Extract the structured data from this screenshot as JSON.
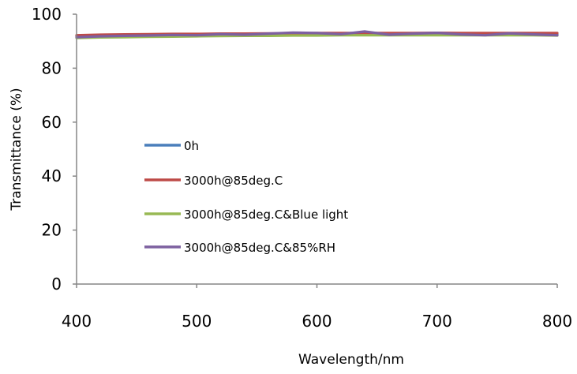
{
  "chart_data": {
    "type": "line",
    "xlabel": "Wavelength/nm",
    "ylabel": "Transmittance (%)",
    "xlim": [
      400,
      800
    ],
    "ylim": [
      0,
      100
    ],
    "xticks": [
      "400",
      "500",
      "600",
      "700",
      "800"
    ],
    "yticks": [
      "0",
      "20",
      "40",
      "60",
      "80",
      "100"
    ],
    "grid": false,
    "legend_position": "center-left",
    "x": [
      400,
      420,
      440,
      460,
      480,
      500,
      520,
      540,
      560,
      580,
      600,
      620,
      640,
      660,
      680,
      700,
      720,
      740,
      760,
      780,
      800
    ],
    "series": [
      {
        "name": "0h",
        "color": "#4a7ebb",
        "values": [
          91.8,
          92.0,
          92.1,
          92.2,
          92.3,
          92.4,
          92.4,
          92.5,
          92.5,
          92.6,
          92.6,
          92.6,
          92.7,
          92.7,
          92.7,
          92.7,
          92.7,
          92.7,
          92.7,
          92.7,
          92.6
        ]
      },
      {
        "name": "3000h@85deg.C",
        "color": "#be4b48",
        "values": [
          92.2,
          92.4,
          92.5,
          92.6,
          92.7,
          92.7,
          92.8,
          92.8,
          92.9,
          92.9,
          93.0,
          93.0,
          93.0,
          93.0,
          93.0,
          93.1,
          93.0,
          93.0,
          93.0,
          93.0,
          93.0
        ]
      },
      {
        "name": "3000h@85deg.C&Blue light",
        "color": "#98b954",
        "values": [
          91.2,
          91.4,
          91.5,
          91.6,
          91.7,
          91.8,
          91.9,
          92.0,
          92.0,
          92.1,
          92.1,
          92.2,
          92.2,
          92.2,
          92.2,
          92.2,
          92.2,
          92.2,
          92.2,
          92.2,
          92.1
        ]
      },
      {
        "name": "3000h@85deg.C&85%RH",
        "color": "#7d60a0",
        "values": [
          91.5,
          91.8,
          92.0,
          92.1,
          92.3,
          92.2,
          92.6,
          92.4,
          92.8,
          93.2,
          93.0,
          92.6,
          93.6,
          92.4,
          92.8,
          93.1,
          92.5,
          92.2,
          92.9,
          92.5,
          92.2
        ]
      }
    ]
  }
}
